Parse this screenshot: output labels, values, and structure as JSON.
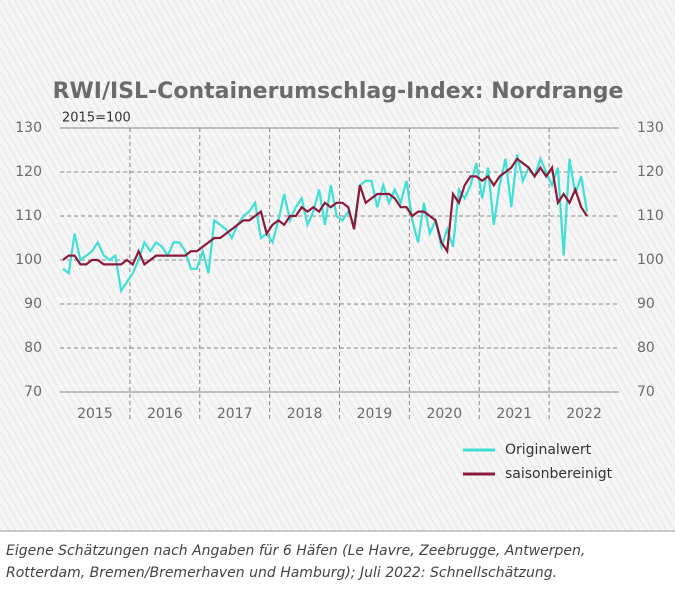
{
  "chart_data": {
    "type": "line",
    "title": "RWI/ISL-Containerumschlag-Index: Nordrange",
    "subtitle": "2015=100",
    "categories": [
      null,
      null,
      null,
      null,
      null,
      "2015",
      null,
      null,
      null,
      null,
      null,
      null,
      null,
      null,
      null,
      null,
      null,
      "2016",
      null,
      null,
      null,
      null,
      null,
      null,
      null,
      null,
      null,
      null,
      null,
      "2017",
      null,
      null,
      null,
      null,
      null,
      null,
      null,
      null,
      null,
      null,
      null,
      "2018",
      null,
      null,
      null,
      null,
      null,
      null,
      null,
      null,
      null,
      null,
      null,
      "2019",
      null,
      null,
      null,
      null,
      null,
      null,
      null,
      null,
      null,
      null,
      null,
      "2020",
      null,
      null,
      null,
      null,
      null,
      null,
      null,
      null,
      null,
      null,
      null,
      "2021",
      null,
      null,
      null,
      null,
      null,
      null,
      null,
      null,
      null,
      null,
      null,
      "2022",
      null
    ],
    "series": [
      {
        "name": "Originalwert",
        "color": "#3fe0d8",
        "values": [
          98,
          97,
          106,
          100,
          101,
          102,
          104,
          101,
          100,
          101,
          93,
          95,
          97,
          100,
          104,
          102,
          104,
          103,
          101,
          104,
          104,
          102,
          98,
          98,
          102,
          97,
          109,
          108,
          107,
          105,
          108,
          110,
          111,
          113,
          105,
          106,
          104,
          109,
          115,
          109,
          112,
          114,
          108,
          111,
          116,
          108,
          117,
          110,
          109,
          111,
          108,
          117,
          118,
          118,
          112,
          117,
          113,
          116,
          113,
          118,
          109,
          104,
          113,
          106,
          109,
          103,
          107,
          103,
          116,
          114,
          117,
          122,
          114,
          121,
          108,
          117,
          123,
          112,
          124,
          118,
          121,
          119,
          123,
          120,
          117,
          121,
          101,
          123,
          115,
          119,
          111
        ]
      },
      {
        "name": "saisonbereinigt",
        "color": "#8b1a3a",
        "values": [
          100,
          101,
          101,
          99,
          99,
          100,
          100,
          99,
          99,
          99,
          99,
          100,
          99,
          102,
          99,
          100,
          101,
          101,
          101,
          101,
          101,
          101,
          102,
          102,
          103,
          104,
          105,
          105,
          106,
          107,
          108,
          109,
          109,
          110,
          111,
          106,
          108,
          109,
          108,
          110,
          110,
          112,
          111,
          112,
          111,
          113,
          112,
          113,
          113,
          112,
          107,
          117,
          113,
          114,
          115,
          115,
          115,
          114,
          112,
          112,
          110,
          111,
          111,
          110,
          109,
          104,
          102,
          115,
          113,
          117,
          119,
          119,
          118,
          119,
          117,
          119,
          120,
          121,
          123,
          122,
          121,
          119,
          121,
          119,
          121,
          113,
          115,
          113,
          116,
          112,
          110
        ]
      }
    ],
    "ylim": [
      70,
      130
    ],
    "yticks": [
      70,
      80,
      90,
      100,
      110,
      120,
      130
    ],
    "grid": true,
    "footnote": "Eigene Schätzungen nach Angaben für 6 Häfen (Le Havre, Zeebrugge, Antwerpen, Rotterdam, Bremen/Bremerhaven und Hamburg); Juli 2022: Schnellschätzung."
  }
}
